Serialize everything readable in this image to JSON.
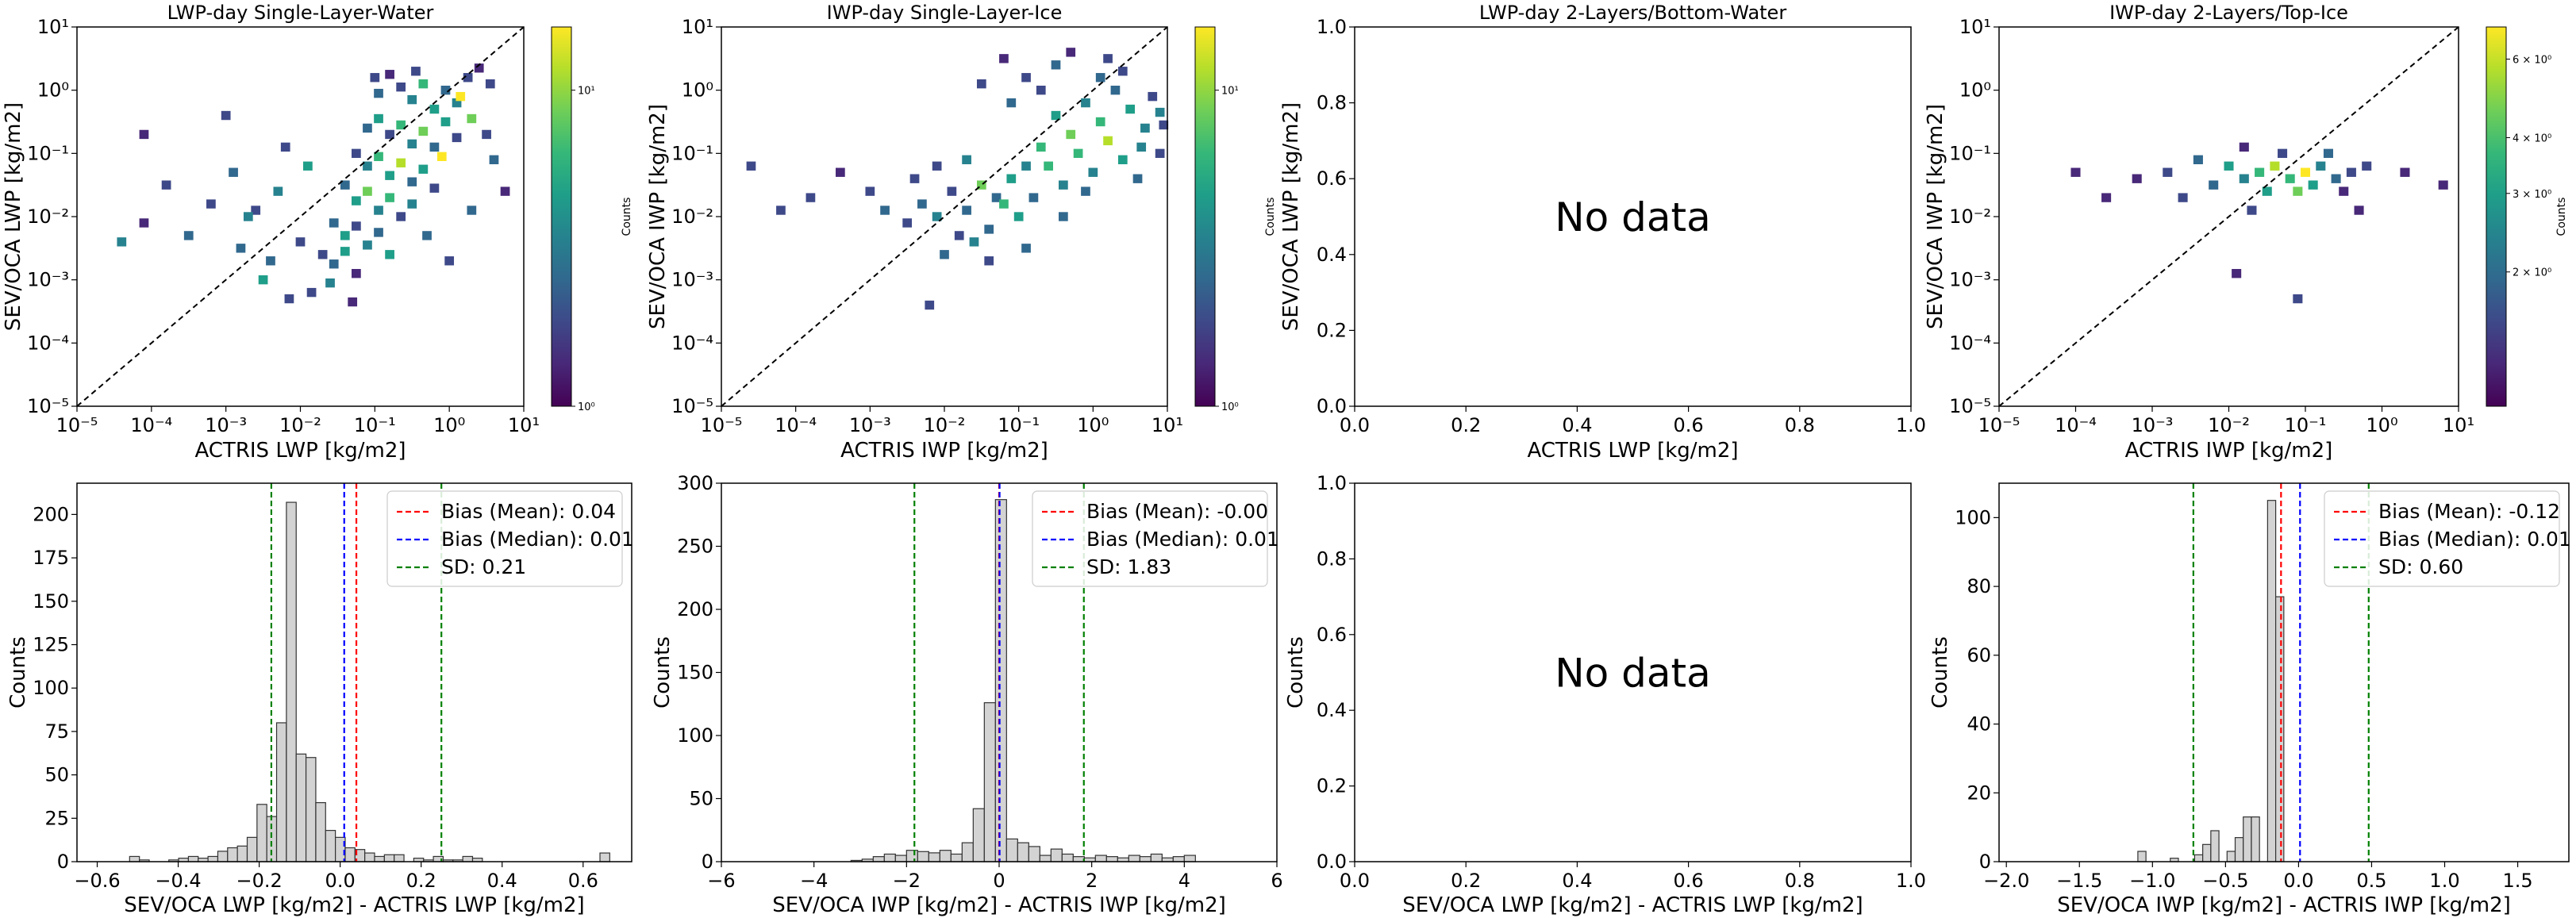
{
  "colors": {
    "mean_line": "#ff0000",
    "median_line": "#0000ff",
    "sd_line": "#008000",
    "bar_fill": "#d3d3d3",
    "bar_edge": "#333333",
    "diag": "#000000",
    "viridis": [
      "#440154",
      "#482878",
      "#3e4989",
      "#31688e",
      "#26828e",
      "#1f9e89",
      "#35b779",
      "#6ece58",
      "#b5de2b",
      "#fde725"
    ]
  },
  "colorbar_label": "Counts",
  "nodata_text": "No data",
  "chart_data": [
    {
      "type": "heatmap",
      "title": "LWP-day Single-Layer-Water",
      "xlabel": "ACTRIS LWP [kg/m2]",
      "ylabel": "SEV/OCA LWP [kg/m2]",
      "scale": "log",
      "xlim": [
        -5,
        1
      ],
      "ylim": [
        -5,
        1
      ],
      "ticks": [
        "10⁻⁵",
        "10⁻⁴",
        "10⁻³",
        "10⁻²",
        "10⁻¹",
        "10⁰",
        "10¹"
      ],
      "diagonal": true,
      "colorbar": {
        "scale": "log",
        "ticks": [
          "10⁰",
          "10¹"
        ],
        "range": [
          0,
          1.2
        ],
        "tick_pos": [
          0,
          1
        ]
      },
      "points": [
        [
          -0.95,
          -0.05,
          0.45
        ],
        [
          -0.8,
          0.25,
          0.1
        ],
        [
          -0.65,
          0.05,
          0.3
        ],
        [
          -0.5,
          -0.15,
          0.55
        ],
        [
          -0.35,
          0.1,
          0.8
        ],
        [
          -0.2,
          -0.3,
          0.6
        ],
        [
          -0.05,
          0.0,
          0.35
        ],
        [
          0.1,
          -0.2,
          0.5
        ],
        [
          0.25,
          0.2,
          0.3
        ],
        [
          0.4,
          0.35,
          0.15
        ],
        [
          -1.1,
          -0.6,
          0.4
        ],
        [
          -0.95,
          -0.45,
          0.65
        ],
        [
          -0.8,
          -0.7,
          0.3
        ],
        [
          -0.65,
          -0.55,
          0.75
        ],
        [
          -0.5,
          -0.85,
          0.5
        ],
        [
          -0.35,
          -0.65,
          0.95
        ],
        [
          -0.2,
          -0.9,
          0.4
        ],
        [
          -0.05,
          -0.5,
          0.7
        ],
        [
          0.1,
          -0.75,
          0.25
        ],
        [
          -1.25,
          -1.0,
          0.3
        ],
        [
          -1.1,
          -1.2,
          0.55
        ],
        [
          -0.95,
          -1.05,
          0.85
        ],
        [
          -0.8,
          -1.35,
          0.6
        ],
        [
          -0.65,
          -1.15,
          1.0
        ],
        [
          -0.5,
          -1.45,
          0.45
        ],
        [
          -0.35,
          -1.25,
          0.7
        ],
        [
          -0.2,
          -1.55,
          0.2
        ],
        [
          -1.4,
          -1.5,
          0.35
        ],
        [
          -1.25,
          -1.75,
          0.6
        ],
        [
          -1.1,
          -1.6,
          0.9
        ],
        [
          -0.95,
          -1.9,
          0.5
        ],
        [
          -0.8,
          -1.7,
          0.75
        ],
        [
          -0.65,
          -2.0,
          0.3
        ],
        [
          -0.5,
          -1.8,
          0.55
        ],
        [
          -1.55,
          -2.1,
          0.4
        ],
        [
          -1.4,
          -2.3,
          0.65
        ],
        [
          -1.25,
          -2.15,
          0.2
        ],
        [
          -1.1,
          -2.45,
          0.5
        ],
        [
          -0.95,
          -2.25,
          0.35
        ],
        [
          -1.7,
          -2.6,
          0.25
        ],
        [
          -1.55,
          -2.75,
          0.45
        ],
        [
          -1.4,
          -2.55,
          0.7
        ],
        [
          -1.25,
          -2.9,
          0.15
        ],
        [
          -2.0,
          -2.4,
          0.3
        ],
        [
          -2.3,
          -1.6,
          0.55
        ],
        [
          -2.6,
          -1.9,
          0.25
        ],
        [
          -2.9,
          -1.3,
          0.4
        ],
        [
          -3.2,
          -1.8,
          0.2
        ],
        [
          -3.5,
          -2.3,
          0.35
        ],
        [
          -3.8,
          -1.5,
          0.3
        ],
        [
          -4.1,
          -2.1,
          0.15
        ],
        [
          -4.4,
          -2.4,
          0.5
        ],
        [
          -4.1,
          -0.7,
          0.1
        ],
        [
          -2.4,
          -2.7,
          0.35
        ],
        [
          -2.8,
          -2.5,
          0.45
        ],
        [
          -3.0,
          -0.4,
          0.2
        ],
        [
          -2.2,
          -0.9,
          0.3
        ],
        [
          -2.5,
          -3.0,
          0.6
        ],
        [
          -0.1,
          -1.05,
          1.2
        ],
        [
          0.15,
          -0.1,
          1.15
        ],
        [
          0.3,
          -0.45,
          0.9
        ],
        [
          0.5,
          -0.7,
          0.25
        ],
        [
          0.6,
          -1.1,
          0.4
        ],
        [
          0.75,
          -1.6,
          0.15
        ],
        [
          -1.85,
          -3.2,
          0.3
        ],
        [
          -2.15,
          -3.3,
          0.2
        ],
        [
          -1.6,
          -3.05,
          0.5
        ],
        [
          -1.3,
          -3.35,
          0.1
        ],
        [
          0.3,
          -1.9,
          0.35
        ],
        [
          0.0,
          -2.7,
          0.2
        ],
        [
          -0.8,
          -2.6,
          0.6
        ],
        [
          -0.3,
          -2.3,
          0.45
        ],
        [
          -1.9,
          -1.2,
          0.65
        ],
        [
          -2.7,
          -2.0,
          0.5
        ],
        [
          -0.45,
          0.3,
          0.25
        ],
        [
          0.55,
          0.1,
          0.3
        ],
        [
          -1.0,
          0.2,
          0.2
        ]
      ]
    },
    {
      "type": "heatmap",
      "title": "IWP-day Single-Layer-Ice",
      "xlabel": "ACTRIS IWP [kg/m2]",
      "ylabel": "SEV/OCA IWP [kg/m2]",
      "scale": "log",
      "xlim": [
        -5,
        1
      ],
      "ylim": [
        -5,
        1
      ],
      "ticks": [
        "10⁻⁵",
        "10⁻⁴",
        "10⁻³",
        "10⁻²",
        "10⁻¹",
        "10⁰",
        "10¹"
      ],
      "diagonal": true,
      "colorbar": {
        "scale": "log",
        "ticks": [
          "10⁰",
          "10¹"
        ],
        "range": [
          0,
          1.2
        ],
        "tick_pos": [
          0,
          1
        ]
      },
      "points": [
        [
          0.9,
          -1.0,
          0.3
        ],
        [
          0.7,
          -0.6,
          0.5
        ],
        [
          0.5,
          -0.3,
          0.7
        ],
        [
          0.3,
          0.0,
          0.4
        ],
        [
          0.1,
          -0.5,
          0.85
        ],
        [
          -0.1,
          -0.2,
          0.55
        ],
        [
          -0.3,
          -0.7,
          0.95
        ],
        [
          -0.5,
          -0.4,
          0.6
        ],
        [
          -0.7,
          -0.9,
          0.8
        ],
        [
          -0.9,
          -1.2,
          0.5
        ],
        [
          -1.1,
          -1.4,
          0.7
        ],
        [
          -1.3,
          -1.7,
          0.4
        ],
        [
          -1.5,
          -1.5,
          0.9
        ],
        [
          -1.7,
          -1.9,
          0.45
        ],
        [
          -1.9,
          -1.6,
          0.3
        ],
        [
          -2.1,
          -2.0,
          0.55
        ],
        [
          -2.3,
          -1.8,
          0.35
        ],
        [
          -2.5,
          -2.1,
          0.25
        ],
        [
          0.6,
          -1.4,
          0.45
        ],
        [
          0.4,
          -1.1,
          0.65
        ],
        [
          0.2,
          -0.8,
          1.0
        ],
        [
          0.0,
          -1.3,
          0.55
        ],
        [
          -0.2,
          -1.0,
          0.75
        ],
        [
          -0.4,
          -1.5,
          0.5
        ],
        [
          -0.6,
          -1.2,
          0.85
        ],
        [
          -0.8,
          -1.7,
          0.4
        ],
        [
          -1.0,
          -2.0,
          0.6
        ],
        [
          -1.2,
          -1.8,
          0.75
        ],
        [
          -1.4,
          -2.2,
          0.35
        ],
        [
          -1.6,
          -2.4,
          0.5
        ],
        [
          -1.8,
          -2.3,
          0.25
        ],
        [
          0.4,
          0.3,
          0.2
        ],
        [
          0.2,
          0.5,
          0.3
        ],
        [
          -0.3,
          0.6,
          0.15
        ],
        [
          -0.9,
          0.2,
          0.25
        ],
        [
          -1.5,
          0.1,
          0.2
        ],
        [
          -1.1,
          -0.2,
          0.4
        ],
        [
          -0.7,
          0.0,
          0.3
        ],
        [
          0.8,
          -0.1,
          0.25
        ],
        [
          0.9,
          -0.35,
          0.55
        ],
        [
          -3.0,
          -1.6,
          0.2
        ],
        [
          -3.4,
          -1.3,
          0.15
        ],
        [
          -3.8,
          -1.7,
          0.25
        ],
        [
          -4.2,
          -1.9,
          0.2
        ],
        [
          -4.6,
          -1.2,
          0.3
        ],
        [
          -2.8,
          -1.9,
          0.35
        ],
        [
          -2.0,
          -2.6,
          0.4
        ],
        [
          -1.4,
          -2.7,
          0.3
        ],
        [
          -0.9,
          -2.5,
          0.45
        ],
        [
          -2.2,
          -3.4,
          0.2
        ],
        [
          -1.2,
          0.5,
          0.15
        ],
        [
          -2.1,
          -1.2,
          0.3
        ],
        [
          0.95,
          -0.55,
          0.3
        ],
        [
          -0.5,
          0.4,
          0.35
        ],
        [
          0.1,
          0.2,
          0.4
        ],
        [
          -1.7,
          -1.1,
          0.5
        ],
        [
          -2.4,
          -1.4,
          0.3
        ],
        [
          -0.1,
          -1.6,
          0.45
        ],
        [
          -0.4,
          -2.0,
          0.35
        ],
        [
          0.65,
          -0.9,
          0.5
        ]
      ]
    },
    {
      "type": "heatmap",
      "title": "LWP-day 2-Layers/Bottom-Water",
      "xlabel": "ACTRIS LWP [kg/m2]",
      "ylabel": "SEV/OCA LWP [kg/m2]",
      "scale": "linear",
      "xlim": [
        0,
        1
      ],
      "ylim": [
        0,
        1
      ],
      "ticks": [
        "0.0",
        "0.2",
        "0.4",
        "0.6",
        "0.8",
        "1.0"
      ],
      "nodata": true,
      "points": []
    },
    {
      "type": "heatmap",
      "title": "IWP-day 2-Layers/Top-Ice",
      "xlabel": "ACTRIS IWP [kg/m2]",
      "ylabel": "SEV/OCA IWP [kg/m2]",
      "scale": "log",
      "xlim": [
        -5,
        1
      ],
      "ylim": [
        -5,
        1
      ],
      "ticks": [
        "10⁻⁵",
        "10⁻⁴",
        "10⁻³",
        "10⁻²",
        "10⁻¹",
        "10⁰",
        "10¹"
      ],
      "diagonal": true,
      "colorbar": {
        "scale": "log",
        "ticks": [
          "2 × 10⁰",
          "3 × 10⁰",
          "4 × 10⁰",
          "6 × 10⁰"
        ],
        "range": [
          0,
          0.85
        ],
        "tick_pos": [
          0.301,
          0.477,
          0.602,
          0.778
        ]
      },
      "points": [
        [
          -3.2,
          -1.4,
          0.1
        ],
        [
          -2.8,
          -1.3,
          0.2
        ],
        [
          -2.4,
          -1.1,
          0.3
        ],
        [
          -2.0,
          -1.2,
          0.5
        ],
        [
          -1.8,
          -1.4,
          0.35
        ],
        [
          -1.6,
          -1.3,
          0.6
        ],
        [
          -1.4,
          -1.2,
          0.75
        ],
        [
          -1.2,
          -1.4,
          0.55
        ],
        [
          -1.0,
          -1.3,
          0.85
        ],
        [
          -0.8,
          -1.2,
          0.4
        ],
        [
          -0.6,
          -1.4,
          0.3
        ],
        [
          -0.4,
          -1.3,
          0.2
        ],
        [
          -0.2,
          -1.2,
          0.15
        ],
        [
          -2.2,
          -1.5,
          0.25
        ],
        [
          -1.5,
          -1.6,
          0.45
        ],
        [
          -1.1,
          -1.6,
          0.65
        ],
        [
          -0.9,
          -1.5,
          0.5
        ],
        [
          -0.7,
          -1.0,
          0.3
        ],
        [
          -1.3,
          -1.0,
          0.2
        ],
        [
          -0.5,
          -1.6,
          0.1
        ],
        [
          -3.6,
          -1.7,
          0.05
        ],
        [
          -4.0,
          -1.3,
          0.1
        ],
        [
          -2.6,
          -1.7,
          0.15
        ],
        [
          0.3,
          -1.3,
          0.1
        ],
        [
          0.8,
          -1.5,
          0.05
        ],
        [
          -1.7,
          -1.9,
          0.2
        ],
        [
          -0.3,
          -1.9,
          0.1
        ],
        [
          -1.9,
          -2.9,
          0.05
        ],
        [
          -1.1,
          -3.3,
          0.15
        ],
        [
          -1.8,
          -0.9,
          0.1
        ]
      ]
    },
    {
      "type": "histogram",
      "xlabel": "SEV/OCA LWP [kg/m2] - ACTRIS LWP [kg/m2]",
      "ylabel": "Counts",
      "xlim": [
        -0.65,
        0.72
      ],
      "ylim": [
        0,
        218
      ],
      "xticks": [
        -0.6,
        -0.4,
        -0.2,
        0.0,
        0.2,
        0.4,
        0.6
      ],
      "xtick_labels": [
        "−0.6",
        "−0.4",
        "−0.2",
        "0.0",
        "0.2",
        "0.4",
        "0.6"
      ],
      "yticks": [
        0,
        25,
        50,
        75,
        100,
        125,
        150,
        175,
        200
      ],
      "bin_start": -0.52,
      "bin_width": 0.0242,
      "values": [
        3,
        1,
        0,
        0,
        1,
        2,
        3,
        2,
        3,
        6,
        8,
        9,
        14,
        33,
        26,
        80,
        207,
        62,
        60,
        34,
        18,
        14,
        8,
        7,
        5,
        3,
        4,
        4,
        0,
        2,
        1,
        3,
        1,
        1,
        3,
        2,
        0,
        0,
        0,
        0,
        0,
        0,
        0,
        0,
        0,
        0,
        0,
        0,
        5
      ],
      "mean": 0.04,
      "median": 0.01,
      "sd": 0.21,
      "sd_lines": [
        -0.17,
        0.25
      ],
      "legend": [
        "Bias (Mean): 0.04",
        "Bias (Median): 0.01",
        "SD: 0.21"
      ]
    },
    {
      "type": "histogram",
      "xlabel": "SEV/OCA IWP [kg/m2] - ACTRIS IWP [kg/m2]",
      "ylabel": "Counts",
      "xlim": [
        -6,
        6
      ],
      "ylim": [
        0,
        300
      ],
      "xticks": [
        -6,
        -4,
        -2,
        0,
        2,
        4,
        6
      ],
      "xtick_labels": [
        "−6",
        "−4",
        "−2",
        "0",
        "2",
        "4",
        "6"
      ],
      "yticks": [
        0,
        50,
        100,
        150,
        200,
        250,
        300
      ],
      "bin_start": -3.2,
      "bin_width": 0.24,
      "values": [
        1,
        2,
        4,
        6,
        5,
        9,
        8,
        7,
        9,
        6,
        15,
        42,
        126,
        287,
        18,
        15,
        12,
        5,
        10,
        6,
        4,
        3,
        5,
        4,
        3,
        5,
        4,
        6,
        3,
        4,
        5
      ],
      "mean": -0.0,
      "median": 0.01,
      "sd": 1.83,
      "sd_lines": [
        -1.83,
        1.83
      ],
      "legend": [
        "Bias (Mean): -0.00",
        "Bias (Median): 0.01",
        "SD: 1.83"
      ]
    },
    {
      "type": "histogram",
      "xlabel": "SEV/OCA LWP [kg/m2] - ACTRIS LWP [kg/m2]",
      "ylabel": "Counts",
      "xlim": [
        0,
        1
      ],
      "ylim": [
        0,
        1
      ],
      "xticks": [
        0,
        0.2,
        0.4,
        0.6,
        0.8,
        1.0
      ],
      "xtick_labels": [
        "0.0",
        "0.2",
        "0.4",
        "0.6",
        "0.8",
        "1.0"
      ],
      "yticks": [
        0,
        0.2,
        0.4,
        0.6,
        0.8,
        1.0
      ],
      "ytick_labels": [
        "0.0",
        "0.2",
        "0.4",
        "0.6",
        "0.8",
        "1.0"
      ],
      "nodata": true,
      "values": []
    },
    {
      "type": "histogram",
      "xlabel": "SEV/OCA IWP [kg/m2] - ACTRIS IWP [kg/m2]",
      "ylabel": "Counts",
      "xlim": [
        -2.05,
        1.85
      ],
      "ylim": [
        0,
        110
      ],
      "xticks": [
        -2.0,
        -1.5,
        -1.0,
        -0.5,
        0.0,
        0.5,
        1.0,
        1.5
      ],
      "xtick_labels": [
        "−2.0",
        "−1.5",
        "−1.0",
        "−0.5",
        "0.0",
        "0.5",
        "1.0",
        "1.5"
      ],
      "yticks": [
        0,
        20,
        40,
        60,
        80,
        100
      ],
      "bin_start": -1.1,
      "bin_width": 0.0555,
      "values": [
        3,
        0,
        0,
        0,
        1,
        0,
        0,
        2,
        5,
        9,
        0,
        3,
        7,
        13,
        13,
        0,
        105,
        77
      ],
      "mean": -0.12,
      "median": 0.01,
      "sd": 0.6,
      "sd_lines": [
        -0.72,
        0.48
      ],
      "legend": [
        "Bias (Mean): -0.12",
        "Bias (Median): 0.01",
        "SD: 0.60"
      ]
    }
  ]
}
